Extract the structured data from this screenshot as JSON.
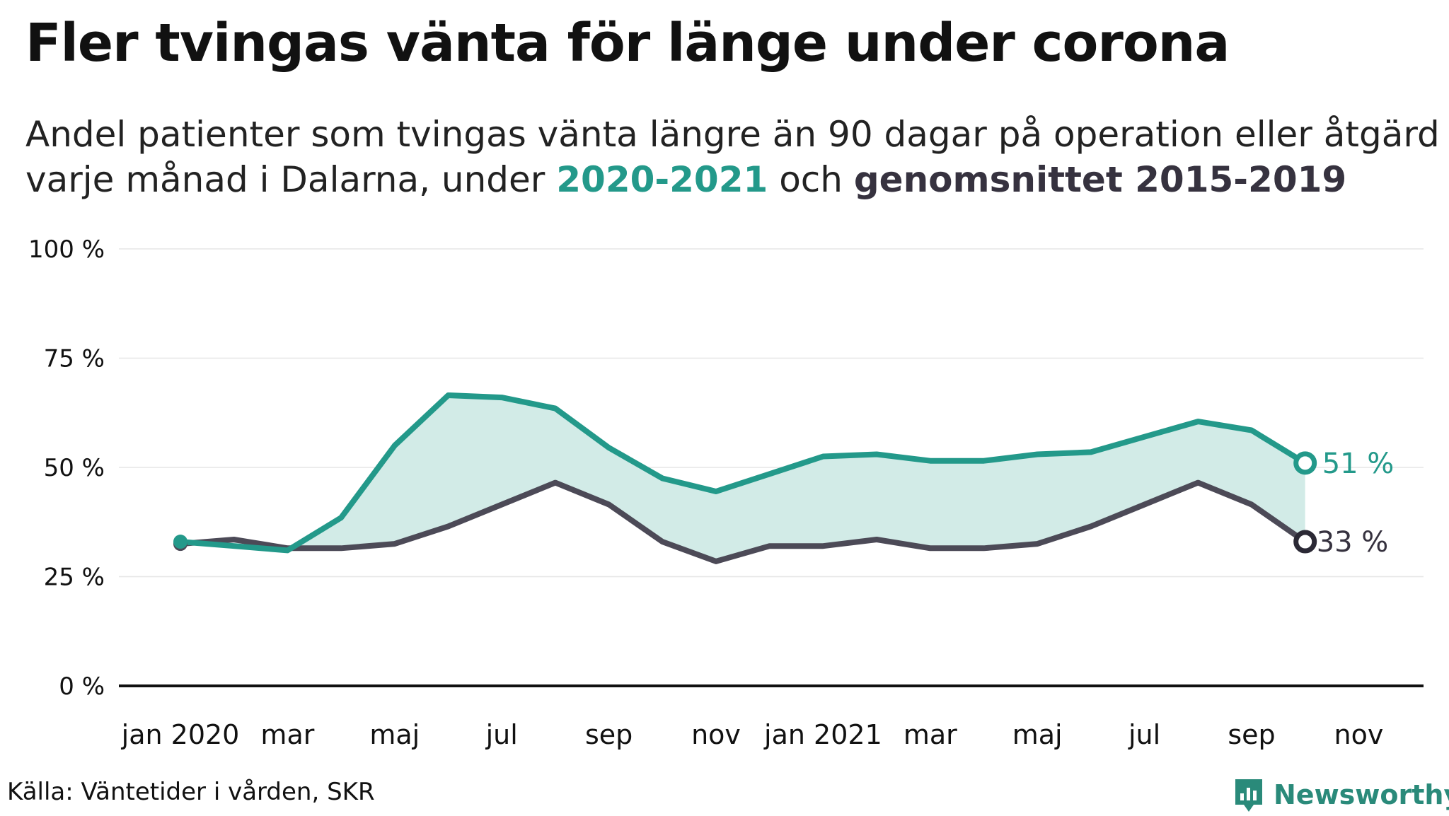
{
  "title": "Fler tvingas vänta för länge under corona",
  "subtitle": {
    "line1": "Andel patienter som tvingas vänta längre än 90 dagar på operation eller åtgärd",
    "line2_pre": "varje månad i Dalarna, under ",
    "highlight1": "2020-2021",
    "line2_mid": " och ",
    "highlight2": "genomsnittet 2015-2019"
  },
  "source": "Källa: Väntetider i vården, SKR",
  "brand": "Newsworthy",
  "colors": {
    "series2020": "#23998a",
    "average": "#4c4a57",
    "fill": "#d2ebe7",
    "grid": "#e6e6e6",
    "axis": "#111111"
  },
  "chart_data": {
    "type": "line",
    "x": [
      "2020-01",
      "2020-02",
      "2020-03",
      "2020-04",
      "2020-05",
      "2020-06",
      "2020-07",
      "2020-08",
      "2020-09",
      "2020-10",
      "2020-11",
      "2020-12",
      "2021-01",
      "2021-02",
      "2021-03",
      "2021-04",
      "2021-05",
      "2021-06",
      "2021-07",
      "2021-08",
      "2021-09",
      "2021-10"
    ],
    "x_tick_labels": [
      "jan 2020",
      "mar",
      "maj",
      "jul",
      "sep",
      "nov",
      "jan 2021",
      "mar",
      "maj",
      "jul",
      "sep",
      "nov"
    ],
    "y_tick_labels": [
      "0 %",
      "25 %",
      "50 %",
      "75 %",
      "100 %"
    ],
    "ylim": [
      0,
      100
    ],
    "series": [
      {
        "name": "2020-2021",
        "values": [
          33,
          32,
          31,
          38.5,
          55,
          66.5,
          66,
          63.5,
          54.5,
          47.5,
          44.5,
          48.5,
          52.5,
          53,
          51.5,
          51.5,
          53,
          53.5,
          57,
          60.5,
          58.5,
          51
        ]
      },
      {
        "name": "genomsnittet 2015-2019",
        "values": [
          32.5,
          33.5,
          31.5,
          31.5,
          32.5,
          36.5,
          41.5,
          46.5,
          41.5,
          33,
          28.5,
          32,
          32,
          33.5,
          31.5,
          31.5,
          32.5,
          36.5,
          41.5,
          46.5,
          41.5,
          33
        ]
      }
    ],
    "end_labels": [
      "51 %",
      "33 %"
    ],
    "grid": true
  }
}
